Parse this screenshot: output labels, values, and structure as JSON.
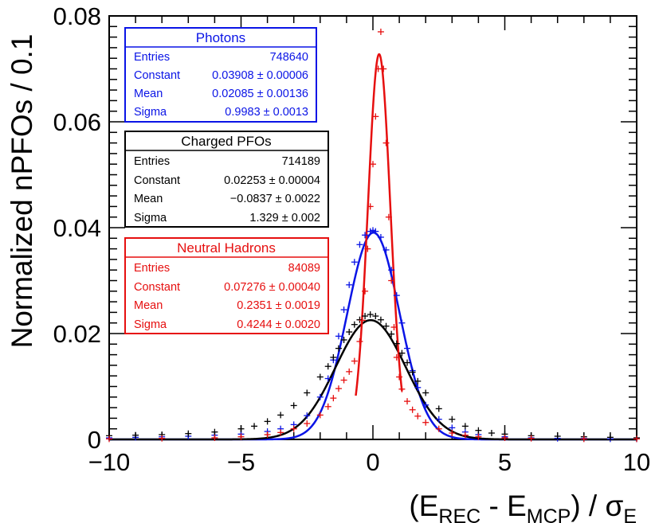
{
  "chart_data": {
    "type": "line",
    "title": "",
    "xlabel_parts": {
      "open": "(E",
      "sub1": "REC",
      "mid": " - E",
      "sub2": "MCP",
      "close": ") / σ",
      "sub3": "E"
    },
    "ylabel": "Normalized nPFOs / 0.1",
    "xlim": [
      -10,
      10
    ],
    "ylim": [
      0,
      0.08
    ],
    "xticks": [
      -10,
      -5,
      0,
      5,
      10
    ],
    "xtick_labels": [
      "−10",
      "−5",
      "0",
      "5",
      "10"
    ],
    "yticks": [
      0,
      0.02,
      0.04,
      0.06,
      0.08
    ],
    "ytick_labels": [
      "0",
      "0.02",
      "0.04",
      "0.06",
      "0.08"
    ],
    "series": [
      {
        "name": "Photons",
        "color": "#0a14e6",
        "fit": {
          "constant": 0.03908,
          "mean": 0.02085,
          "sigma": 0.9983
        },
        "stats": [
          {
            "label": "Entries",
            "value": "748640"
          },
          {
            "label": "Constant",
            "value": "0.03908 ± 0.00006"
          },
          {
            "label": "Mean",
            "value": "0.02085 ± 0.00136"
          },
          {
            "label": "Sigma",
            "value": "0.9983 ± 0.0013"
          }
        ],
        "points": [
          [
            -10,
            0.0003
          ],
          [
            -9,
            0.0004
          ],
          [
            -8,
            0.0005
          ],
          [
            -7,
            0.0006
          ],
          [
            -6,
            0.0008
          ],
          [
            -5,
            0.001
          ],
          [
            -4,
            0.0015
          ],
          [
            -3.5,
            0.002
          ],
          [
            -3,
            0.0028
          ],
          [
            -2.5,
            0.0045
          ],
          [
            -2,
            0.008
          ],
          [
            -1.7,
            0.0115
          ],
          [
            -1.5,
            0.015
          ],
          [
            -1.3,
            0.0195
          ],
          [
            -1.1,
            0.0245
          ],
          [
            -0.9,
            0.0292
          ],
          [
            -0.7,
            0.0335
          ],
          [
            -0.5,
            0.0368
          ],
          [
            -0.3,
            0.0386
          ],
          [
            -0.1,
            0.0393
          ],
          [
            0,
            0.0395
          ],
          [
            0.1,
            0.0393
          ],
          [
            0.3,
            0.0382
          ],
          [
            0.5,
            0.0358
          ],
          [
            0.7,
            0.032
          ],
          [
            0.9,
            0.0272
          ],
          [
            1.1,
            0.022
          ],
          [
            1.3,
            0.0172
          ],
          [
            1.5,
            0.013
          ],
          [
            1.7,
            0.0098
          ],
          [
            2,
            0.0065
          ],
          [
            2.5,
            0.0038
          ],
          [
            3,
            0.0022
          ],
          [
            3.5,
            0.0014
          ],
          [
            4,
            0.0009
          ],
          [
            5,
            0.0005
          ],
          [
            6,
            0.0003
          ],
          [
            7,
            0.0002
          ],
          [
            8,
            0.0002
          ],
          [
            9,
            0.0001
          ],
          [
            10,
            0.0001
          ]
        ]
      },
      {
        "name": "Charged PFOs",
        "color": "#000000",
        "fit": {
          "constant": 0.02253,
          "mean": -0.0837,
          "sigma": 1.329
        },
        "stats": [
          {
            "label": "Entries",
            "value": "714189"
          },
          {
            "label": "Constant",
            "value": "0.02253 ± 0.00004"
          },
          {
            "label": "Mean",
            "value": "−0.0837 ± 0.0022"
          },
          {
            "label": "Sigma",
            "value": "1.329 ± 0.002"
          }
        ],
        "points": [
          [
            -10,
            0.0007
          ],
          [
            -9,
            0.0008
          ],
          [
            -8,
            0.0009
          ],
          [
            -7,
            0.0011
          ],
          [
            -6,
            0.0014
          ],
          [
            -5,
            0.002
          ],
          [
            -4.5,
            0.0025
          ],
          [
            -4,
            0.0034
          ],
          [
            -3.5,
            0.0046
          ],
          [
            -3,
            0.0064
          ],
          [
            -2.5,
            0.0088
          ],
          [
            -2,
            0.0118
          ],
          [
            -1.7,
            0.0138
          ],
          [
            -1.5,
            0.0155
          ],
          [
            -1.3,
            0.0172
          ],
          [
            -1.1,
            0.0188
          ],
          [
            -0.9,
            0.0203
          ],
          [
            -0.7,
            0.0217
          ],
          [
            -0.5,
            0.0226
          ],
          [
            -0.3,
            0.0233
          ],
          [
            -0.1,
            0.0236
          ],
          [
            0.1,
            0.0233
          ],
          [
            0.3,
            0.0226
          ],
          [
            0.5,
            0.0214
          ],
          [
            0.7,
            0.0199
          ],
          [
            0.9,
            0.0181
          ],
          [
            1.1,
            0.0163
          ],
          [
            1.3,
            0.0145
          ],
          [
            1.5,
            0.0127
          ],
          [
            1.7,
            0.011
          ],
          [
            2,
            0.0088
          ],
          [
            2.5,
            0.0058
          ],
          [
            3,
            0.0038
          ],
          [
            3.5,
            0.0025
          ],
          [
            4,
            0.0017
          ],
          [
            4.5,
            0.0012
          ],
          [
            5,
            0.001
          ],
          [
            6,
            0.0007
          ],
          [
            7,
            0.0006
          ],
          [
            8,
            0.0005
          ],
          [
            9,
            0.0004
          ],
          [
            10,
            0.0003
          ]
        ]
      },
      {
        "name": "Neutral Hadrons",
        "color": "#e60f0f",
        "fit": {
          "constant": 0.07276,
          "mean": 0.2351,
          "sigma": 0.4244,
          "range": [
            -0.65,
            1.1
          ]
        },
        "stats": [
          {
            "label": "Entries",
            "value": "84089"
          },
          {
            "label": "Constant",
            "value": "0.07276 ± 0.00040"
          },
          {
            "label": "Mean",
            "value": "0.2351 ± 0.0019"
          },
          {
            "label": "Sigma",
            "value": "0.4244 ± 0.0020"
          }
        ],
        "points": [
          [
            -10,
            0.0001
          ],
          [
            -8,
            0.0002
          ],
          [
            -6,
            0.0003
          ],
          [
            -5,
            0.0005
          ],
          [
            -4,
            0.0009
          ],
          [
            -3.5,
            0.0013
          ],
          [
            -3,
            0.002
          ],
          [
            -2.5,
            0.003
          ],
          [
            -2,
            0.0046
          ],
          [
            -1.7,
            0.0062
          ],
          [
            -1.5,
            0.0078
          ],
          [
            -1.3,
            0.0096
          ],
          [
            -1.1,
            0.0112
          ],
          [
            -0.9,
            0.0128
          ],
          [
            -0.7,
            0.0148
          ],
          [
            -0.5,
            0.0185
          ],
          [
            -0.4,
            0.0225
          ],
          [
            -0.3,
            0.028
          ],
          [
            -0.2,
            0.036
          ],
          [
            -0.1,
            0.044
          ],
          [
            0,
            0.052
          ],
          [
            0.1,
            0.061
          ],
          [
            0.2,
            0.07
          ],
          [
            0.3,
            0.077
          ],
          [
            0.4,
            0.07
          ],
          [
            0.5,
            0.056
          ],
          [
            0.6,
            0.042
          ],
          [
            0.7,
            0.03
          ],
          [
            0.8,
            0.0212
          ],
          [
            0.9,
            0.0155
          ],
          [
            1.0,
            0.0118
          ],
          [
            1.1,
            0.0095
          ],
          [
            1.3,
            0.0072
          ],
          [
            1.5,
            0.0056
          ],
          [
            1.7,
            0.0044
          ],
          [
            2,
            0.0032
          ],
          [
            2.5,
            0.002
          ],
          [
            3,
            0.0012
          ],
          [
            3.5,
            0.0008
          ],
          [
            4,
            0.0005
          ],
          [
            5,
            0.0003
          ],
          [
            6,
            0.0002
          ],
          [
            8,
            0.0001
          ],
          [
            10,
            0.0001
          ]
        ]
      }
    ]
  }
}
